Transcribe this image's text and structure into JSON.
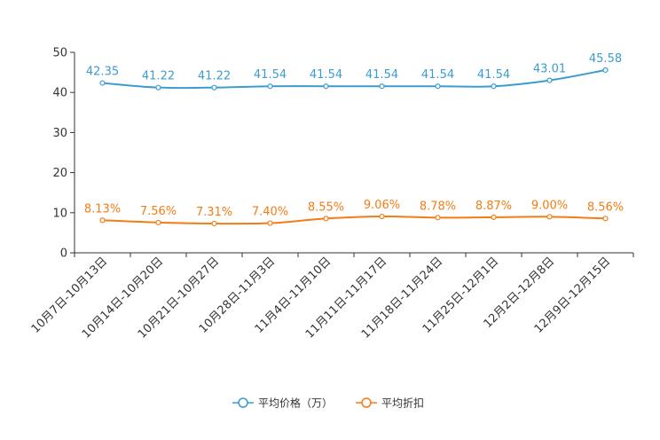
{
  "chart_data": {
    "type": "line",
    "title": "",
    "xlabel": "",
    "ylabel": "",
    "ylim": [
      0,
      50
    ],
    "yticks": [
      0,
      10,
      20,
      30,
      40,
      50
    ],
    "grid": false,
    "legend_position": "bottom-center",
    "categories": [
      "10月7日-10月13日",
      "10月14日-10月20日",
      "10月21日-10月27日",
      "10月28日-11月3日",
      "11月4日-11月10日",
      "11月11日-11月17日",
      "11月18日-11月24日",
      "11月25日-12月1日",
      "12月2日-12月8日",
      "12月9日-12月15日"
    ],
    "series": [
      {
        "name": "平均价格（万）",
        "color": "#3c9bd1",
        "values": [
          42.35,
          41.22,
          41.22,
          41.54,
          41.54,
          41.54,
          41.54,
          41.54,
          43.01,
          45.58
        ],
        "labels": [
          "42.35",
          "41.22",
          "41.22",
          "41.54",
          "41.54",
          "41.54",
          "41.54",
          "41.54",
          "43.01",
          "45.58"
        ]
      },
      {
        "name": "平均折扣",
        "color": "#f57c14",
        "values": [
          8.13,
          7.56,
          7.31,
          7.4,
          8.55,
          9.06,
          8.78,
          8.87,
          9.0,
          8.56
        ],
        "labels": [
          "8.13%",
          "7.56%",
          "7.31%",
          "7.40%",
          "8.55%",
          "9.06%",
          "8.78%",
          "8.87%",
          "9.00%",
          "8.56%"
        ]
      }
    ]
  }
}
